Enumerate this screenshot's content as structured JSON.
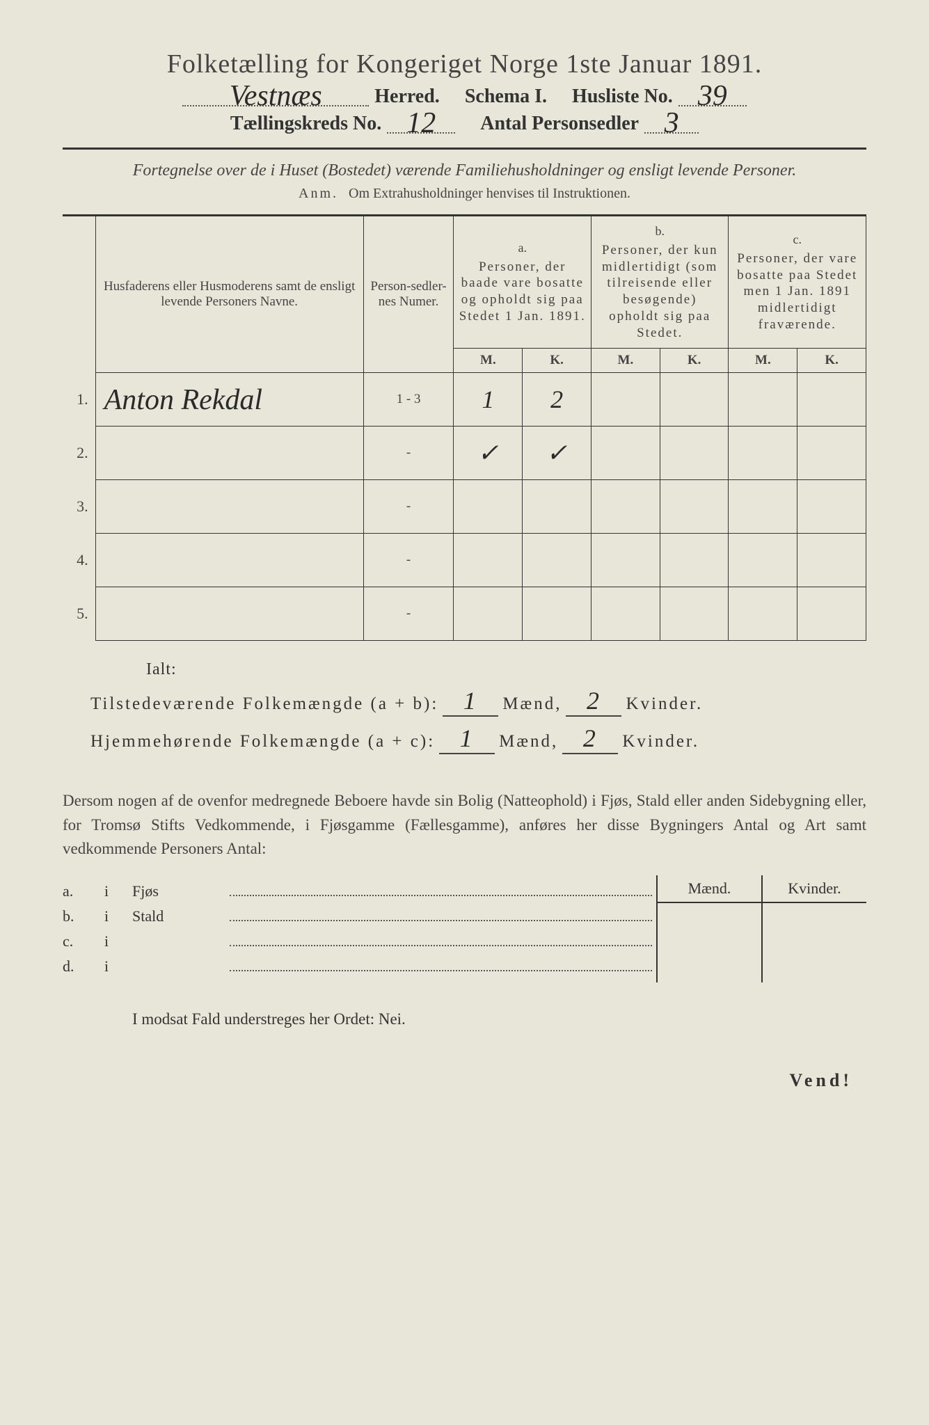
{
  "title": "Folketælling for Kongeriget Norge 1ste Januar 1891.",
  "header": {
    "herred_value": "Vestnæs",
    "herred_label": "Herred.",
    "schema_label": "Schema I.",
    "husliste_label": "Husliste No.",
    "husliste_value": "39",
    "kreds_label": "Tællingskreds No.",
    "kreds_value": "12",
    "antal_label": "Antal Personsedler",
    "antal_value": "3"
  },
  "description": "Fortegnelse over de i Huset (Bostedet) værende Familiehusholdninger og ensligt levende Personer.",
  "anm_label": "Anm.",
  "anm_text": "Om Extrahusholdninger henvises til Instruktionen.",
  "columns": {
    "names": "Husfaderens eller Husmoderens samt de ensligt levende Personers Navne.",
    "numer": "Person-sedler-nes Numer.",
    "a_label": "a.",
    "a_text": "Personer, der baade vare bosatte og opholdt sig paa Stedet 1 Jan. 1891.",
    "b_label": "b.",
    "b_text": "Personer, der kun midlertidigt (som tilreisende eller besøgende) opholdt sig paa Stedet.",
    "c_label": "c.",
    "c_text": "Personer, der vare bosatte paa Stedet men 1 Jan. 1891 midlertidigt fraværende.",
    "M": "M.",
    "K": "K."
  },
  "rows": [
    {
      "n": "1.",
      "name": "Anton Rekdal",
      "numer": "1 - 3",
      "aM": "1",
      "aK": "2",
      "bM": "",
      "bK": "",
      "cM": "",
      "cK": ""
    },
    {
      "n": "2.",
      "name": "",
      "numer": "-",
      "aM": "✓",
      "aK": "✓",
      "bM": "",
      "bK": "",
      "cM": "",
      "cK": ""
    },
    {
      "n": "3.",
      "name": "",
      "numer": "-",
      "aM": "",
      "aK": "",
      "bM": "",
      "bK": "",
      "cM": "",
      "cK": ""
    },
    {
      "n": "4.",
      "name": "",
      "numer": "-",
      "aM": "",
      "aK": "",
      "bM": "",
      "bK": "",
      "cM": "",
      "cK": ""
    },
    {
      "n": "5.",
      "name": "",
      "numer": "-",
      "aM": "",
      "aK": "",
      "bM": "",
      "bK": "",
      "cM": "",
      "cK": ""
    }
  ],
  "ialt": "Ialt:",
  "sum1_label": "Tilstedeværende Folkemængde (a + b):",
  "sum2_label": "Hjemmehørende Folkemængde (a + c):",
  "maend": "Mænd,",
  "kvinder": "Kvinder.",
  "sum1_m": "1",
  "sum1_k": "2",
  "sum2_m": "1",
  "sum2_k": "2",
  "paragraph": "Dersom nogen af de ovenfor medregnede Beboere havde sin Bolig (Natteophold) i Fjøs, Stald eller anden Sidebygning eller, for Tromsø Stifts Vedkommende, i Fjøsgamme (Fællesgamme), anføres her disse Bygningers Antal og Art samt vedkommende Personers Antal:",
  "side_head_m": "Mænd.",
  "side_head_k": "Kvinder.",
  "side_rows": [
    {
      "lab": "a.",
      "i": "i",
      "name": "Fjøs"
    },
    {
      "lab": "b.",
      "i": "i",
      "name": "Stald"
    },
    {
      "lab": "c.",
      "i": "i",
      "name": ""
    },
    {
      "lab": "d.",
      "i": "i",
      "name": ""
    }
  ],
  "nei_line": "I modsat Fald understreges her Ordet: Nei.",
  "vend": "Vend!",
  "colors": {
    "paper": "#e8e6d8",
    "ink": "#333333",
    "hand": "#2a2a2a"
  }
}
